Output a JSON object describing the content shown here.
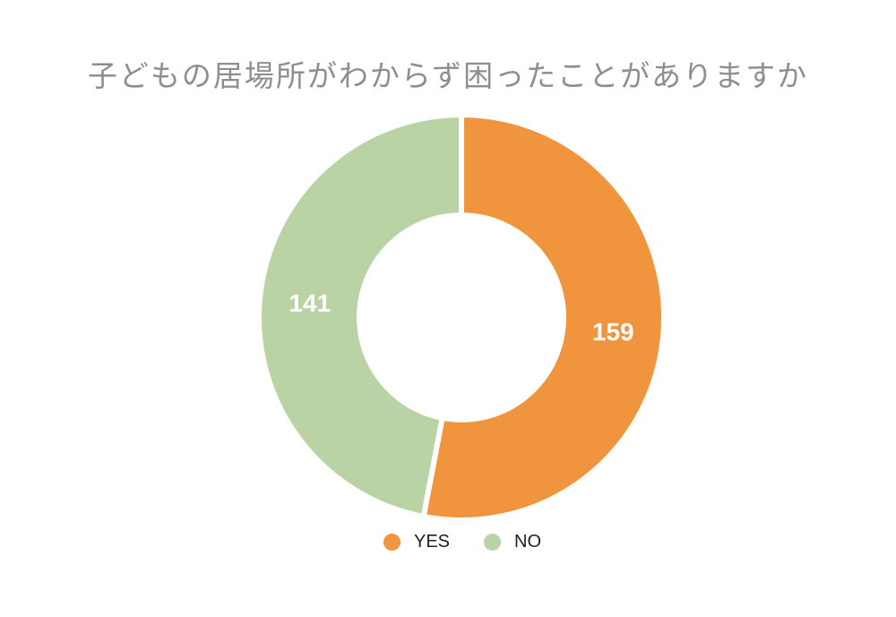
{
  "chart_data": {
    "type": "pie",
    "donut": true,
    "title": "子どもの居場所がわからず困ったことがありますか",
    "labels": [
      "YES",
      "NO"
    ],
    "values": [
      159,
      141
    ],
    "colors": [
      "#f0943e",
      "#b9d3a4"
    ],
    "value_label_color": "#ffffff",
    "title_color": "#8e8e8e",
    "legend_position": "bottom",
    "start_angle_deg": 0,
    "direction": "clockwise"
  }
}
